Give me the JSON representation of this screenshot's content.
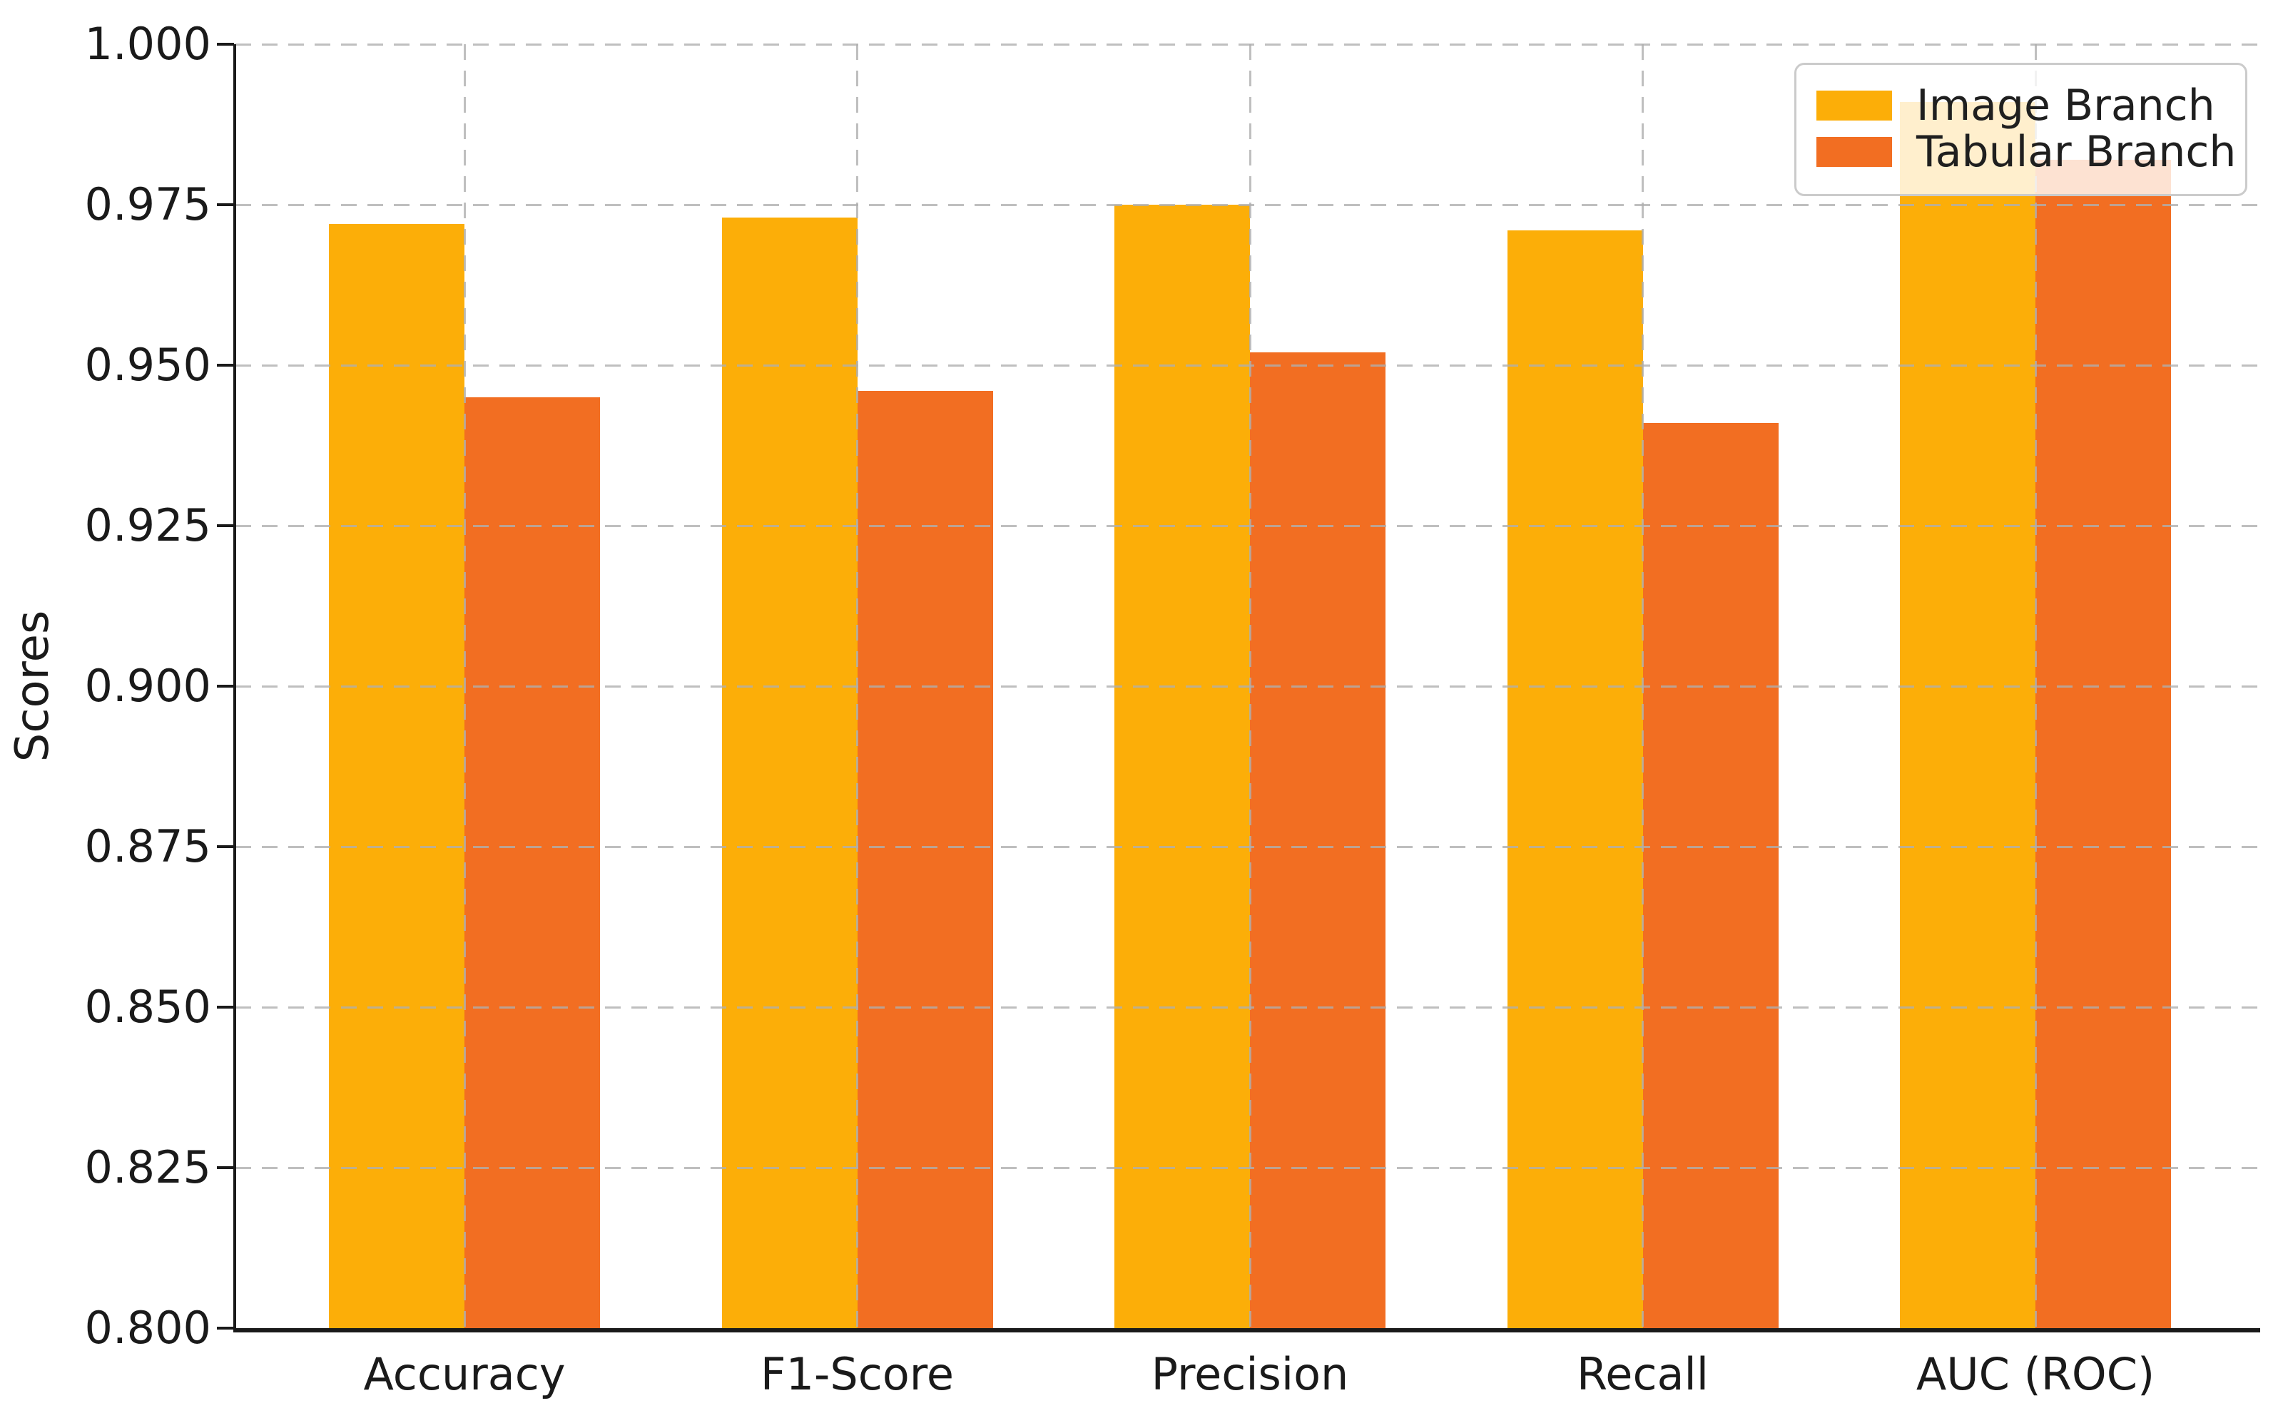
{
  "chart_data": {
    "type": "bar",
    "title": "",
    "xlabel": "",
    "ylabel": "Scores",
    "categories": [
      "Accuracy",
      "F1-Score",
      "Precision",
      "Recall",
      "AUC (ROC)"
    ],
    "series": [
      {
        "name": "Image Branch",
        "color": "#FCAE08",
        "values": [
          0.972,
          0.973,
          0.975,
          0.971,
          0.991
        ]
      },
      {
        "name": "Tabular Branch",
        "color": "#F26E22",
        "values": [
          0.945,
          0.946,
          0.952,
          0.941,
          0.982
        ]
      }
    ],
    "ylim": [
      0.8,
      1.0
    ],
    "yticks": [
      "0.800",
      "0.825",
      "0.850",
      "0.875",
      "0.900",
      "0.925",
      "0.950",
      "0.975",
      "1.000"
    ],
    "grid": true,
    "grid_style": "dashed",
    "legend_position": "upper right",
    "background_color": "#ffffff",
    "axis_color": "#1a1a1a"
  }
}
